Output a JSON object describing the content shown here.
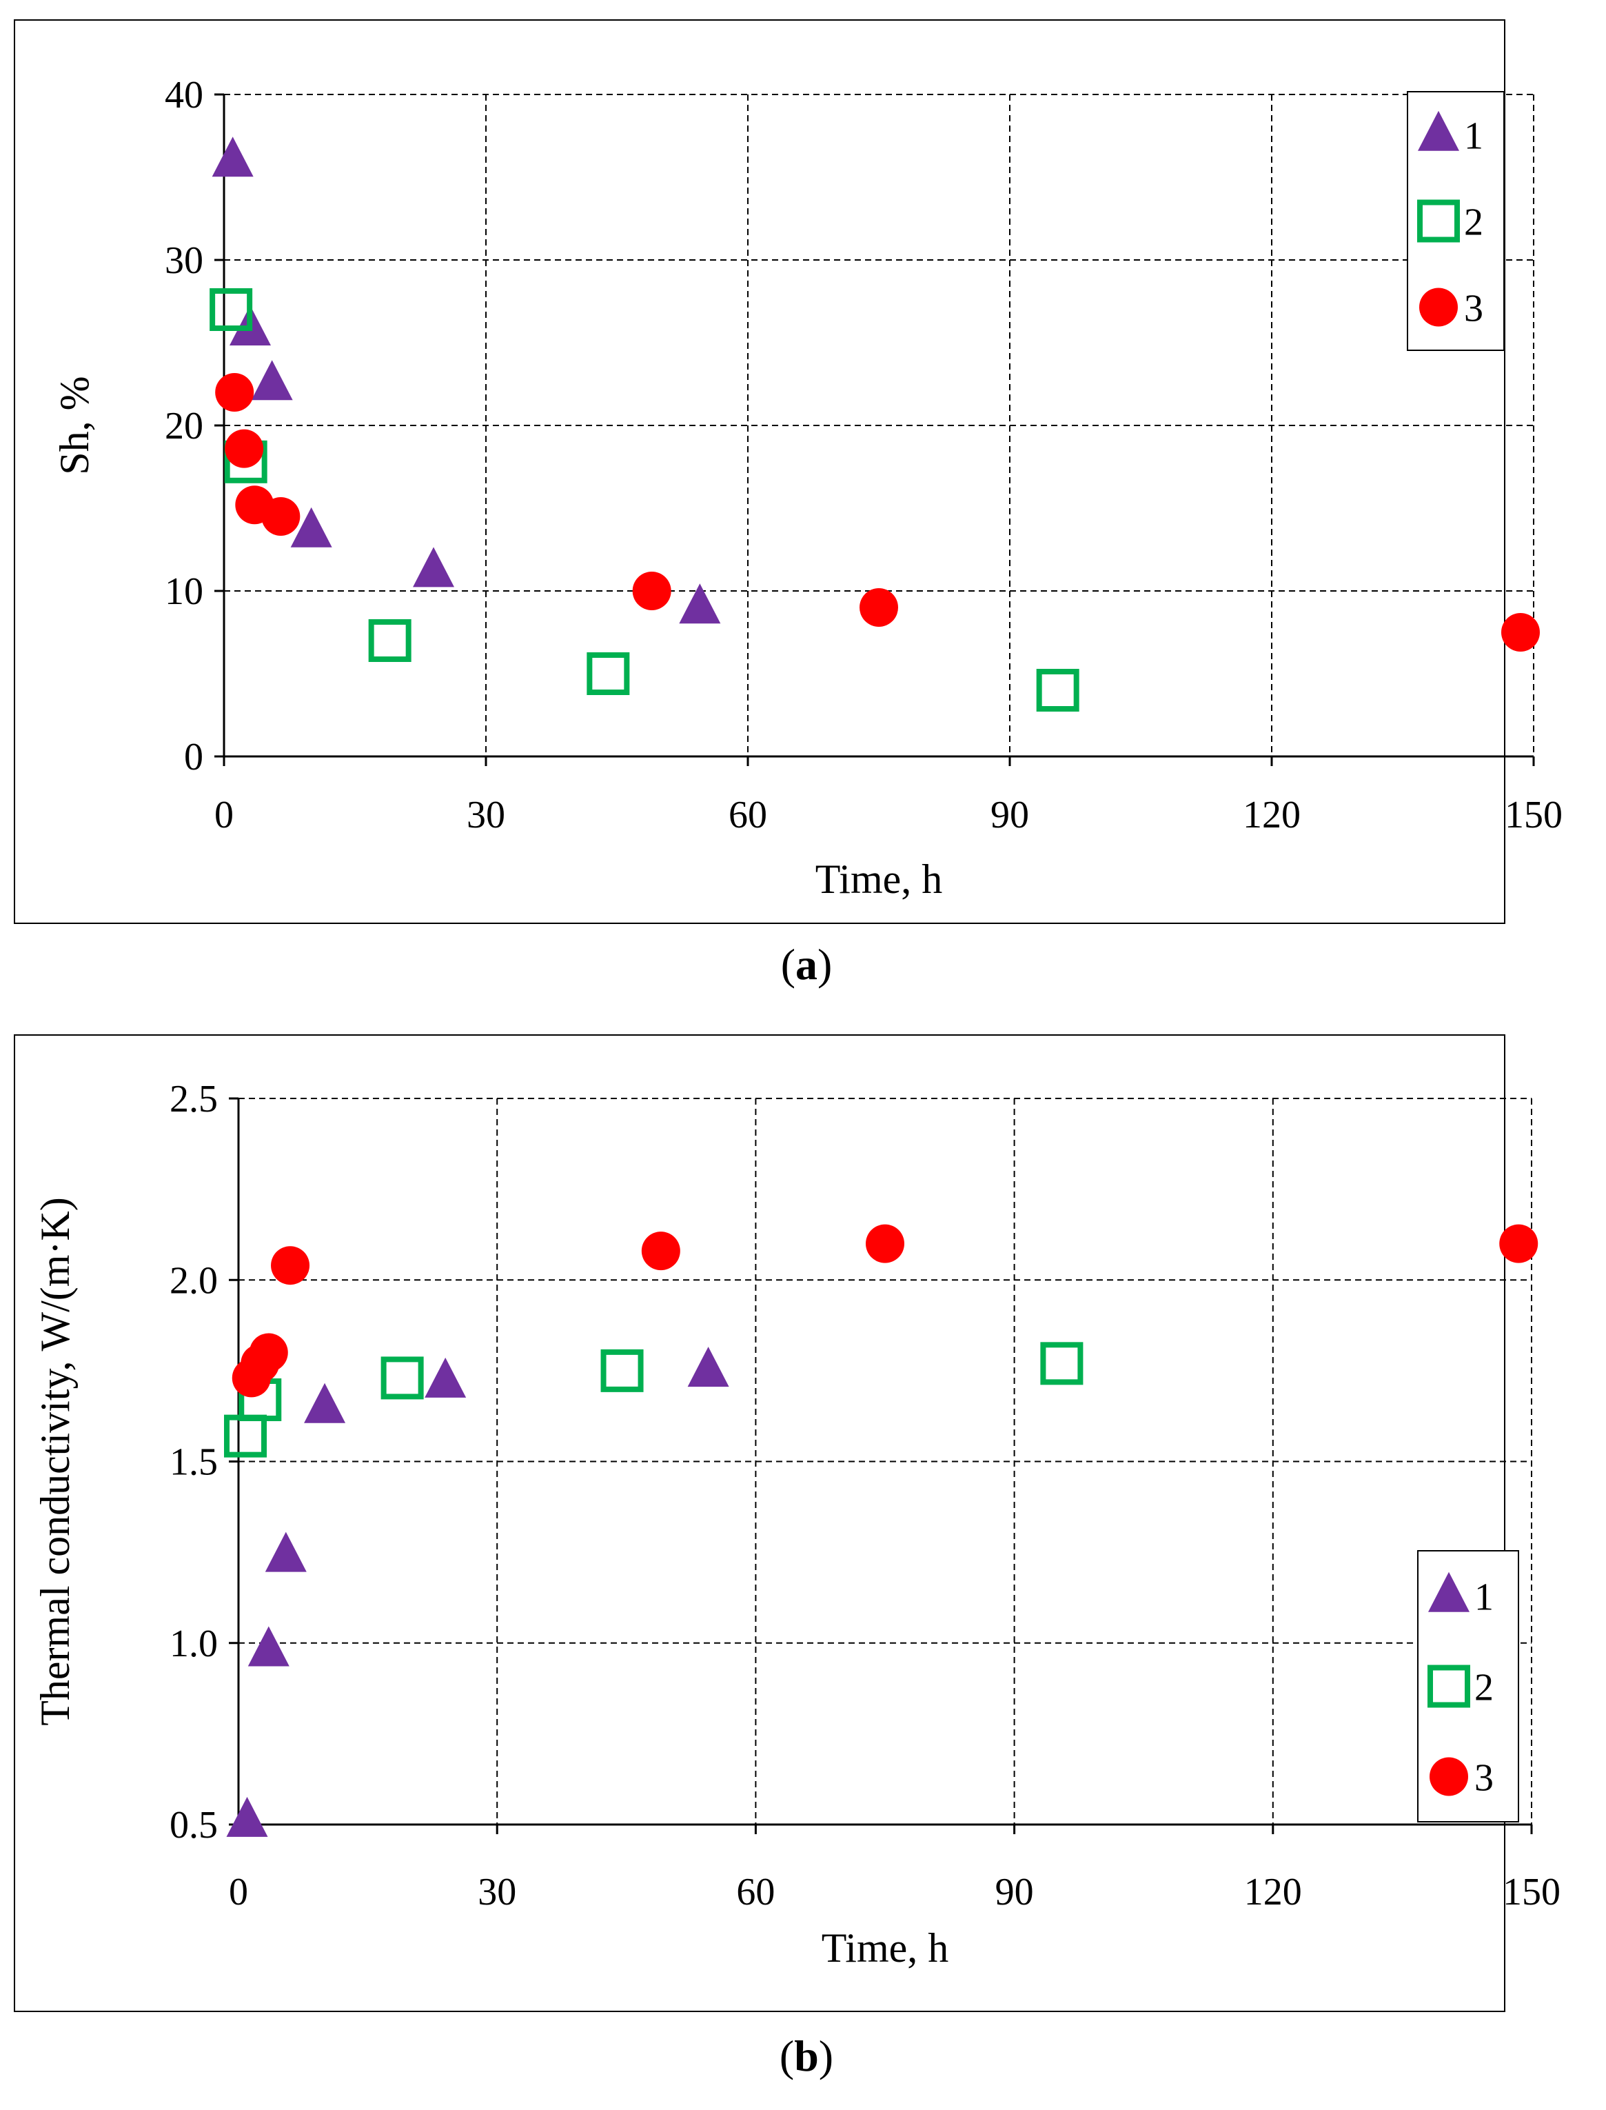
{
  "figure": {
    "caption_a_letter": "a",
    "caption_b_letter": "b"
  },
  "chart_data": [
    {
      "type": "scatter",
      "panel": "a",
      "title": "",
      "xlabel": "Time, h",
      "ylabel": "Sh, %",
      "xlim": [
        0,
        150
      ],
      "ylim": [
        0,
        40
      ],
      "xticks": [
        0,
        30,
        60,
        90,
        120,
        150
      ],
      "yticks": [
        0,
        10,
        20,
        30,
        40
      ],
      "ytick_labels": [
        "0",
        "10",
        "20",
        "30",
        "40"
      ],
      "grid": true,
      "legend": "top-right",
      "series": [
        {
          "name": "1",
          "marker": "triangle",
          "color": "#7030a0",
          "x": [
            1,
            3,
            5.5,
            10,
            24,
            54.5
          ],
          "y": [
            36,
            25.8,
            22.5,
            13.6,
            11.2,
            9
          ]
        },
        {
          "name": "2",
          "marker": "square-open",
          "color": "#00b050",
          "x": [
            0.8,
            2.5,
            19,
            44,
            95.5
          ],
          "y": [
            27,
            17.8,
            7,
            5,
            4
          ]
        },
        {
          "name": "3",
          "marker": "circle",
          "color": "#ff0000",
          "x": [
            1.2,
            2.3,
            3.5,
            6.5,
            49,
            75,
            148.5
          ],
          "y": [
            22,
            18.6,
            15.2,
            14.5,
            10,
            9,
            7.5
          ]
        }
      ]
    },
    {
      "type": "scatter",
      "panel": "b",
      "title": "",
      "xlabel": "Time, h",
      "ylabel": "Thermal conductivity, W/(m·K)",
      "xlim": [
        0,
        150
      ],
      "ylim": [
        0.5,
        2.5
      ],
      "xticks": [
        0,
        30,
        60,
        90,
        120,
        150
      ],
      "yticks": [
        0.5,
        1.0,
        1.5,
        2.0,
        2.5
      ],
      "ytick_labels": [
        "0.5",
        "1.0",
        "1.5",
        "2.0",
        "2.5"
      ],
      "grid": true,
      "legend": "bottom-right",
      "series": [
        {
          "name": "1",
          "marker": "triangle",
          "color": "#7030a0",
          "x": [
            1,
            3.5,
            5.5,
            10,
            24,
            54.5
          ],
          "y": [
            0.51,
            0.98,
            1.24,
            1.65,
            1.72,
            1.75
          ]
        },
        {
          "name": "2",
          "marker": "square-open",
          "color": "#00b050",
          "x": [
            0.8,
            2.5,
            19,
            44.5,
            95.5
          ],
          "y": [
            1.57,
            1.67,
            1.73,
            1.75,
            1.77
          ]
        },
        {
          "name": "3",
          "marker": "circle",
          "color": "#ff0000",
          "x": [
            1.5,
            2.5,
            3.5,
            6,
            49,
            75,
            148.5
          ],
          "y": [
            1.73,
            1.77,
            1.8,
            2.04,
            2.08,
            2.1,
            2.1
          ]
        }
      ]
    }
  ]
}
